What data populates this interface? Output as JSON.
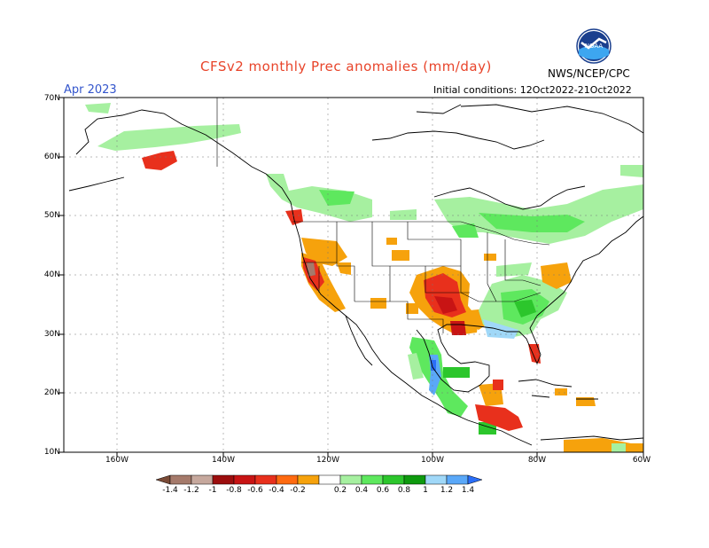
{
  "header": {
    "title": "CFSv2 monthly Prec anomalies (mm/day)",
    "month": "Apr 2023",
    "initial_conditions": "Initial conditions: 12Oct2022-21Oct2022",
    "agency": "NWS/NCEP/CPC",
    "logo_text": "NOAA"
  },
  "axes": {
    "lat_labels": [
      "70N",
      "60N",
      "50N",
      "40N",
      "30N",
      "20N",
      "10N"
    ],
    "lon_labels": [
      "160W",
      "140W",
      "120W",
      "100W",
      "80W",
      "60W"
    ]
  },
  "colorbar": {
    "labels": [
      "-1.4",
      "-1.2",
      "-1",
      "-0.8",
      "-0.6",
      "-0.4",
      "-0.2",
      "0.2",
      "0.4",
      "0.6",
      "0.8",
      "1",
      "1.2",
      "1.4"
    ],
    "colors": [
      "#7a4a36",
      "#a57a6b",
      "#c6a89d",
      "#9c0e0e",
      "#c81414",
      "#e8301c",
      "#ff6a10",
      "#f6a20c",
      "#ffffff",
      "#a6f0a0",
      "#5ee85e",
      "#2cc62c",
      "#0e9a0e",
      "#a0d8f8",
      "#5aa8f8",
      "#2a6ef8"
    ]
  },
  "map_colors": {
    "light_green": "#a6f0a0",
    "green": "#5ee85e",
    "dark_green": "#2cc62c",
    "light_blue": "#a0d8f8",
    "blue": "#2a6ef8",
    "orange": "#f6a20c",
    "red_orange": "#e8301c",
    "dark_red": "#c81414",
    "brown": "#a57a6b"
  }
}
